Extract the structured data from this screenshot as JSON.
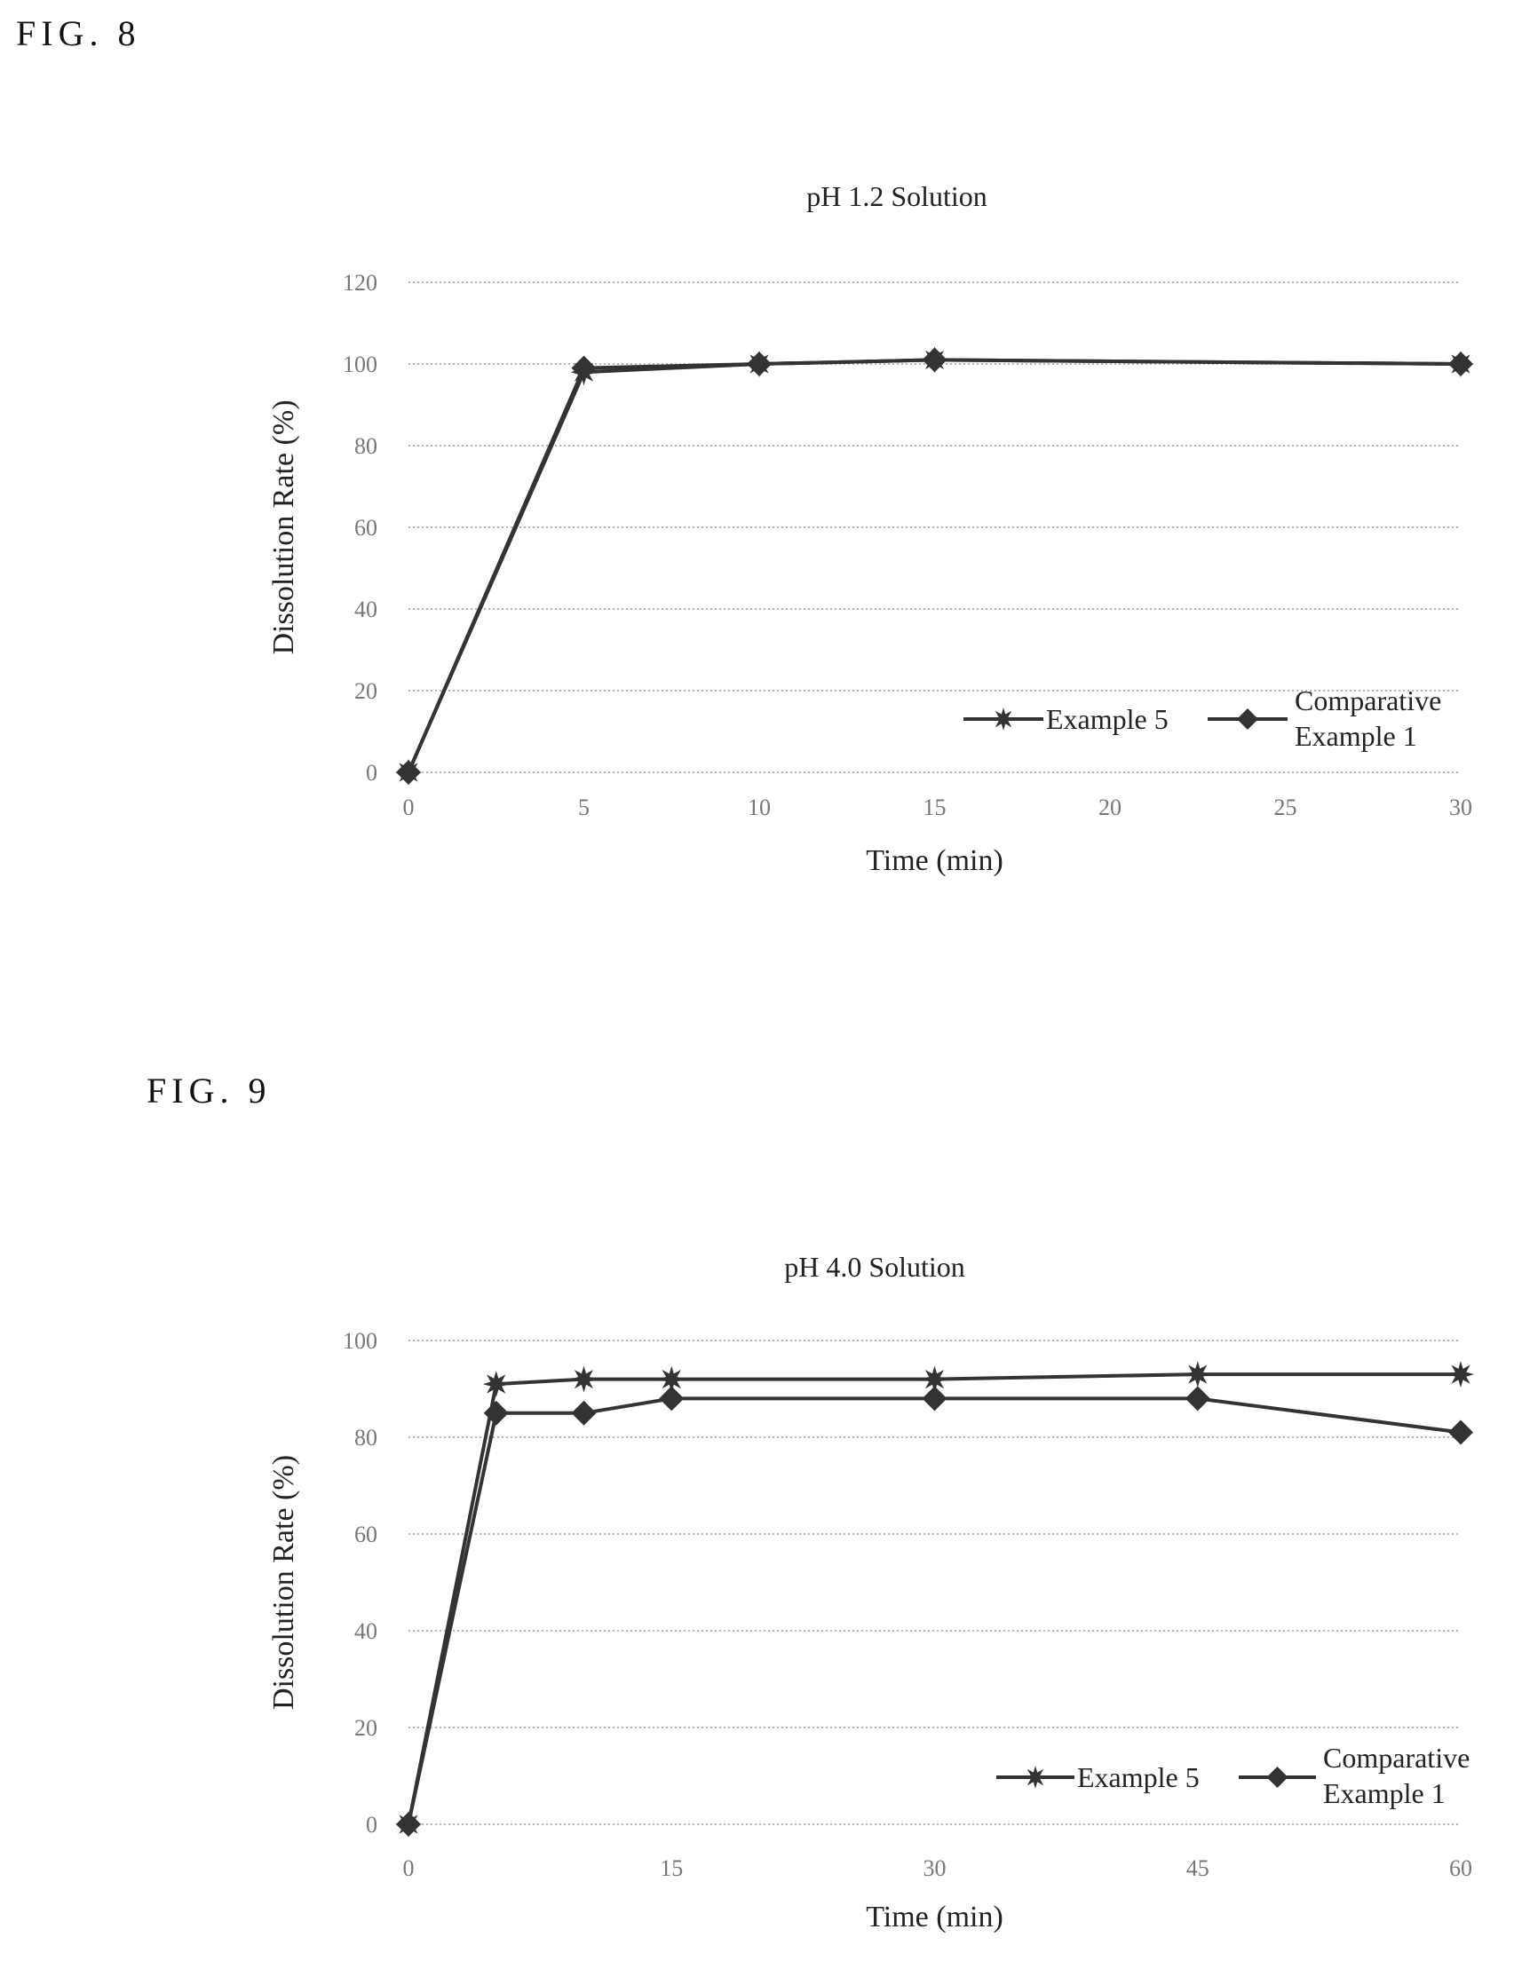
{
  "figures": [
    {
      "label": "FIG. 8"
    },
    {
      "label": "FIG. 9"
    }
  ],
  "chart_data": [
    {
      "type": "line",
      "title": "pH 1.2 Solution",
      "xlabel": "Time (min)",
      "ylabel": "Dissolution Rate (%)",
      "ylim": [
        0,
        120
      ],
      "y_ticks": [
        "0",
        "20",
        "40",
        "60",
        "80",
        "100",
        "120"
      ],
      "x_ticks": [
        "0",
        "5",
        "10",
        "15",
        "20",
        "25",
        "30"
      ],
      "xlim": [
        0,
        30
      ],
      "grid": true,
      "legend_position": "bottom-right",
      "series": [
        {
          "name": "Example 5",
          "x": [
            0,
            5,
            10,
            15,
            30
          ],
          "values": [
            0,
            98,
            100,
            101,
            100
          ]
        },
        {
          "name": "Comparative Example 1",
          "x": [
            0,
            5,
            10,
            15,
            30
          ],
          "values": [
            0,
            99,
            100,
            101,
            100
          ]
        }
      ]
    },
    {
      "type": "line",
      "title": "pH 4.0 Solution",
      "xlabel": "Time (min)",
      "ylabel": "Dissolution Rate (%)",
      "ylim": [
        0,
        100
      ],
      "y_ticks": [
        "0",
        "20",
        "40",
        "60",
        "80",
        "100"
      ],
      "x_ticks": [
        "0",
        "15",
        "30",
        "45",
        "60"
      ],
      "xlim": [
        0,
        60
      ],
      "grid": true,
      "legend_position": "bottom-right",
      "series": [
        {
          "name": "Example 5",
          "x": [
            0,
            5,
            10,
            15,
            30,
            45,
            60
          ],
          "values": [
            0,
            91,
            92,
            92,
            92,
            93,
            93
          ]
        },
        {
          "name": "Comparative Example 1",
          "x": [
            0,
            5,
            10,
            15,
            30,
            45,
            60
          ],
          "values": [
            0,
            85,
            85,
            88,
            88,
            88,
            81
          ]
        }
      ]
    }
  ]
}
